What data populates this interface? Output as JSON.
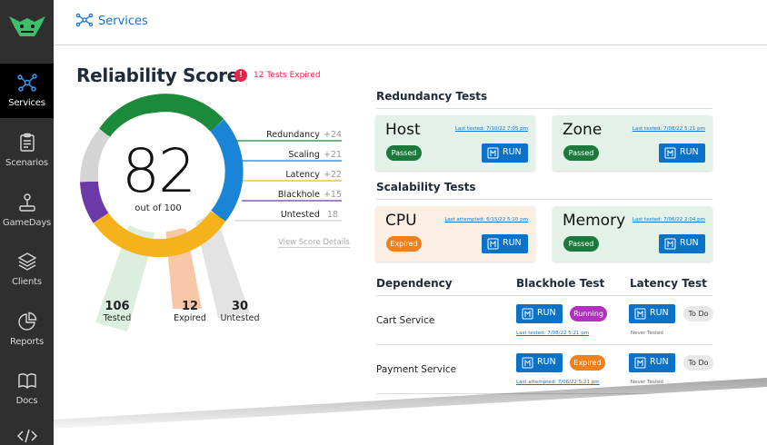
{
  "header": {
    "title": "Services",
    "icon": "services-icon"
  },
  "sidebar": {
    "items": [
      {
        "label": "Services",
        "icon": "services-icon",
        "active": true
      },
      {
        "label": "Scenarios",
        "icon": "clipboard-icon",
        "active": false
      },
      {
        "label": "GameDays",
        "icon": "joystick-icon",
        "active": false
      },
      {
        "label": "Clients",
        "icon": "layers-icon",
        "active": false
      },
      {
        "label": "Reports",
        "icon": "pie-chart-icon",
        "active": false
      },
      {
        "label": "Docs",
        "icon": "book-icon",
        "active": false
      }
    ]
  },
  "score": {
    "title": "Reliability Score",
    "expired_note": "12 Tests Expired",
    "value": "82",
    "out_of": "out of 100",
    "categories": [
      {
        "name": "Redundancy",
        "points": "+24",
        "color": "#1b8a3a"
      },
      {
        "name": "Scaling",
        "points": "+21",
        "color": "#1a85d6"
      },
      {
        "name": "Latency",
        "points": "+22",
        "color": "#f5b21a"
      },
      {
        "name": "Blackhole",
        "points": "+15",
        "color": "#6b39a8"
      },
      {
        "name": "Untested",
        "points": "18",
        "color": "#cccccc"
      }
    ],
    "view_details": "View Score Details",
    "stats": [
      {
        "number": "106",
        "label": "Tested"
      },
      {
        "number": "12",
        "label": "Expired"
      },
      {
        "number": "30",
        "label": "Untested"
      }
    ]
  },
  "redundancy": {
    "heading": "Redundancy Tests",
    "cards": [
      {
        "name": "Host",
        "meta": "Last tested: 7/10/22 7:05 pm",
        "status": "Passed",
        "button": "RUN"
      },
      {
        "name": "Zone",
        "meta": "Last tested: 7/08/22 5:21 pm",
        "status": "Passed",
        "button": "RUN"
      }
    ]
  },
  "scalability": {
    "heading": "Scalability Tests",
    "cards": [
      {
        "name": "CPU",
        "meta": "Last attempted: 6/15/22 5:10 pm",
        "status": "Expired",
        "button": "RUN"
      },
      {
        "name": "Memory",
        "meta": "Last tested: 7/06/22 2:04 pm",
        "status": "Passed",
        "button": "RUN"
      }
    ]
  },
  "dependency": {
    "columns": [
      "Dependency",
      "Blackhole Test",
      "Latency Test"
    ],
    "rows": [
      {
        "name": "Cart Service",
        "blackhole_button": "RUN",
        "blackhole_status": "Running",
        "blackhole_meta": "Last tested: 7/08/22 5:21 pm",
        "latency_button": "RUN",
        "latency_status": "To Do",
        "latency_meta": "Never Tested"
      },
      {
        "name": "Payment Service",
        "blackhole_button": "RUN",
        "blackhole_status": "Expired",
        "blackhole_meta": "Last attempted: 7/06/22 5:21 pm",
        "latency_button": "RUN",
        "latency_status": "To Do",
        "latency_meta": "Never Tested"
      }
    ]
  }
}
